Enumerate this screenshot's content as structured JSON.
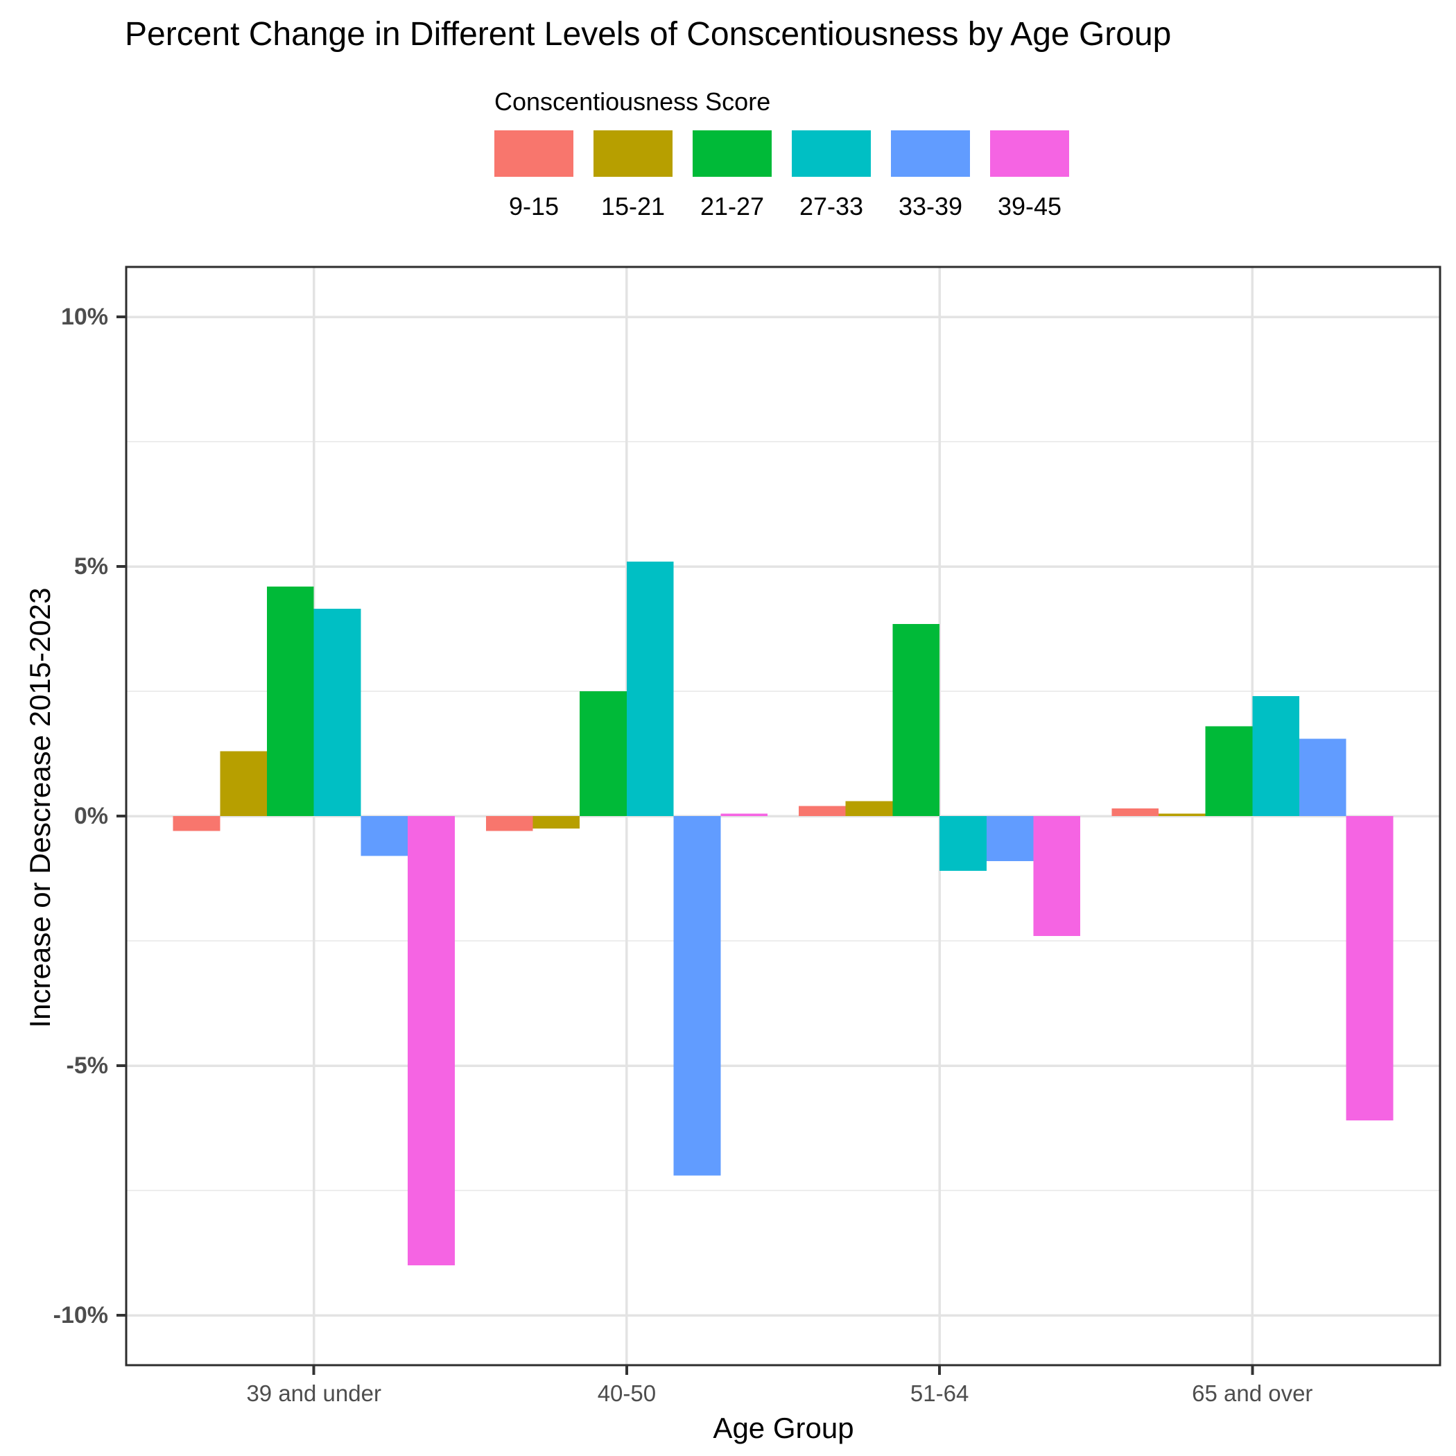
{
  "title": "Percent Change in Different Levels of Conscentiousness by Age Group",
  "legend": {
    "title": "Conscentiousness Score",
    "position": "top",
    "items": [
      {
        "label": "9-15",
        "color": "#F8766D"
      },
      {
        "label": "15-21",
        "color": "#B79F00"
      },
      {
        "label": "21-27",
        "color": "#00BA38"
      },
      {
        "label": "27-33",
        "color": "#00BFC4"
      },
      {
        "label": "33-39",
        "color": "#619CFF"
      },
      {
        "label": "39-45",
        "color": "#F564E3"
      }
    ]
  },
  "axes": {
    "x_label": "Age Group",
    "y_label": "Increase or Descrease 2015-2023",
    "y_ticks": [
      {
        "value": 10,
        "label": "10%"
      },
      {
        "value": 5,
        "label": "5%"
      },
      {
        "value": 0,
        "label": "0%"
      },
      {
        "value": -5,
        "label": "-5%"
      },
      {
        "value": -10,
        "label": "-10%"
      }
    ],
    "y_minor_ticks": [
      7.5,
      2.5,
      -2.5,
      -7.5
    ]
  },
  "chart_data": {
    "type": "bar",
    "title": "Percent Change in Different Levels of Conscentiousness by Age Group",
    "xlabel": "Age Group",
    "ylabel": "Increase or Descrease 2015-2023",
    "categories": [
      "39 and under",
      "40-50",
      "51-64",
      "65 and over"
    ],
    "series": [
      {
        "name": "9-15",
        "color": "#F8766D",
        "values": [
          -0.3,
          -0.3,
          0.2,
          0.15
        ]
      },
      {
        "name": "15-21",
        "color": "#B79F00",
        "values": [
          1.3,
          -0.25,
          0.3,
          0.05
        ]
      },
      {
        "name": "21-27",
        "color": "#00BA38",
        "values": [
          4.6,
          2.5,
          3.85,
          1.8
        ]
      },
      {
        "name": "27-33",
        "color": "#00BFC4",
        "values": [
          4.15,
          5.1,
          -1.1,
          2.4
        ]
      },
      {
        "name": "33-39",
        "color": "#619CFF",
        "values": [
          -0.8,
          -7.2,
          -0.9,
          1.55
        ]
      },
      {
        "name": "39-45",
        "color": "#F564E3",
        "values": [
          -9.0,
          0.05,
          -2.4,
          -6.1
        ]
      }
    ],
    "ylim": [
      -11,
      11
    ],
    "grid": "on",
    "legend_position": "top",
    "bar_group_width": 0.9,
    "colors": {
      "major_grid": "#E3E3E3",
      "minor_grid": "#EDEDED",
      "panel_border": "#2D2D2D",
      "tick_mark": "#333333",
      "tick_label": "#4D4D4D"
    }
  }
}
